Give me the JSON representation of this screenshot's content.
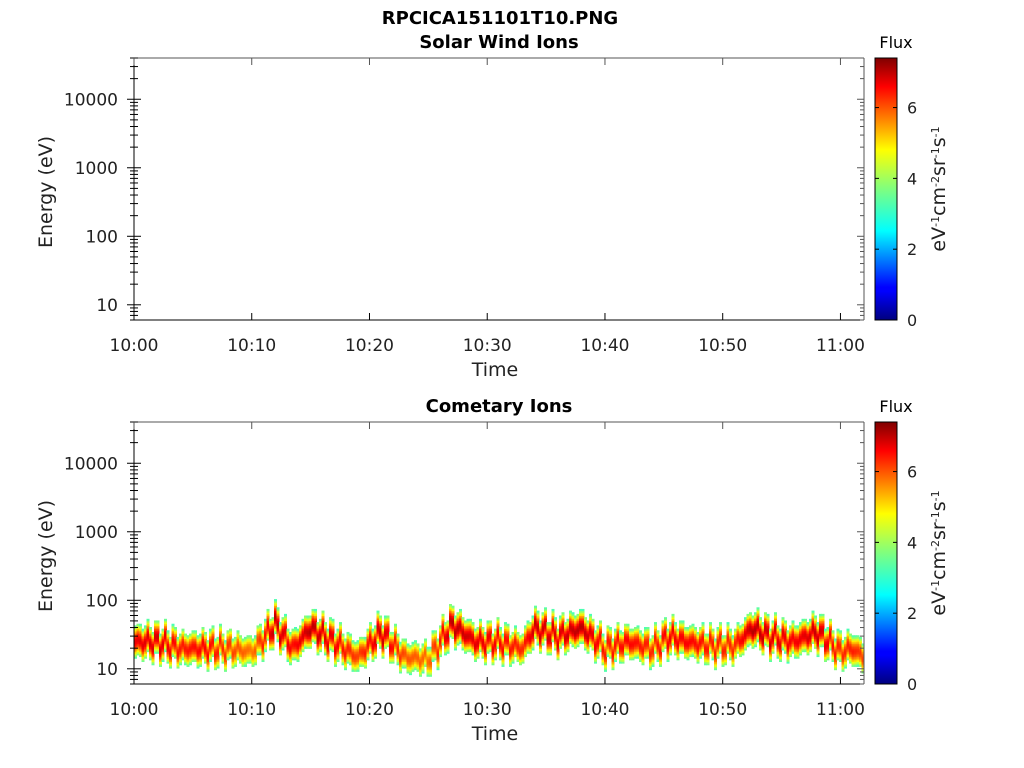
{
  "figure": {
    "title": "RPCICA151101T10.PNG"
  },
  "chart_data": [
    {
      "type": "heatmap",
      "title": "Solar Wind Ions",
      "xlabel": "Time",
      "ylabel": "Energy (eV)",
      "xticks": [
        "10:00",
        "10:10",
        "10:20",
        "10:30",
        "10:40",
        "10:50",
        "11:00"
      ],
      "xlim": [
        "10:00",
        "11:02"
      ],
      "yscale": "log",
      "ylim": [
        6,
        40000
      ],
      "yticks": [
        10,
        100,
        1000,
        10000
      ],
      "ytick_labels": [
        "10",
        "100",
        "1000",
        "10000"
      ],
      "colorbar": {
        "title": "Flux",
        "label": "eV-1cm-2sr-1s-1",
        "range": [
          0,
          7.4
        ],
        "ticks": [
          0,
          2,
          4,
          6
        ],
        "tick_labels": [
          "0",
          "2",
          "4",
          "6"
        ],
        "colormap": "jet"
      },
      "band": []
    },
    {
      "type": "heatmap",
      "title": "Cometary Ions",
      "xlabel": "Time",
      "ylabel": "Energy (eV)",
      "xticks": [
        "10:00",
        "10:10",
        "10:20",
        "10:30",
        "10:40",
        "10:50",
        "11:00"
      ],
      "xlim": [
        "10:00",
        "11:02"
      ],
      "yscale": "log",
      "ylim": [
        6,
        40000
      ],
      "yticks": [
        10,
        100,
        1000,
        10000
      ],
      "ytick_labels": [
        "10",
        "100",
        "1000",
        "10000"
      ],
      "colorbar": {
        "title": "Flux",
        "label": "eV-1cm-2sr-1s-1",
        "range": [
          0,
          7.4
        ],
        "ticks": [
          0,
          2,
          4,
          6
        ],
        "tick_labels": [
          "0",
          "2",
          "4",
          "6"
        ],
        "colormap": "jet"
      },
      "band": [
        {
          "t": 0,
          "peak_eV": 25,
          "peak_flux": 6.6
        },
        {
          "t": 2,
          "peak_eV": 25,
          "peak_flux": 6.8
        },
        {
          "t": 4,
          "peak_eV": 20,
          "peak_flux": 6.3
        },
        {
          "t": 6,
          "peak_eV": 20,
          "peak_flux": 6.5
        },
        {
          "t": 8,
          "peak_eV": 20,
          "peak_flux": 6.1
        },
        {
          "t": 10,
          "peak_eV": 18,
          "peak_flux": 5.6
        },
        {
          "t": 12,
          "peak_eV": 45,
          "peak_flux": 7.0
        },
        {
          "t": 13.5,
          "peak_eV": 20,
          "peak_flux": 6.4
        },
        {
          "t": 15,
          "peak_eV": 40,
          "peak_flux": 7.0
        },
        {
          "t": 17,
          "peak_eV": 25,
          "peak_flux": 6.6
        },
        {
          "t": 19,
          "peak_eV": 15,
          "peak_flux": 6.0
        },
        {
          "t": 21,
          "peak_eV": 35,
          "peak_flux": 6.9
        },
        {
          "t": 23,
          "peak_eV": 15,
          "peak_flux": 5.9
        },
        {
          "t": 25,
          "peak_eV": 14,
          "peak_flux": 5.7
        },
        {
          "t": 27,
          "peak_eV": 45,
          "peak_flux": 7.0
        },
        {
          "t": 29,
          "peak_eV": 25,
          "peak_flux": 6.7
        },
        {
          "t": 31,
          "peak_eV": 25,
          "peak_flux": 6.5
        },
        {
          "t": 33,
          "peak_eV": 20,
          "peak_flux": 6.2
        },
        {
          "t": 34,
          "peak_eV": 40,
          "peak_flux": 6.9
        },
        {
          "t": 36,
          "peak_eV": 30,
          "peak_flux": 6.7
        },
        {
          "t": 38,
          "peak_eV": 40,
          "peak_flux": 7.0
        },
        {
          "t": 40,
          "peak_eV": 20,
          "peak_flux": 6.3
        },
        {
          "t": 42,
          "peak_eV": 25,
          "peak_flux": 6.5
        },
        {
          "t": 44,
          "peak_eV": 20,
          "peak_flux": 6.2
        },
        {
          "t": 45.5,
          "peak_eV": 30,
          "peak_flux": 6.6
        },
        {
          "t": 47,
          "peak_eV": 25,
          "peak_flux": 6.5
        },
        {
          "t": 49,
          "peak_eV": 22,
          "peak_flux": 6.3
        },
        {
          "t": 51,
          "peak_eV": 22,
          "peak_flux": 6.2
        },
        {
          "t": 52.5,
          "peak_eV": 40,
          "peak_flux": 7.0
        },
        {
          "t": 54,
          "peak_eV": 30,
          "peak_flux": 6.8
        },
        {
          "t": 56,
          "peak_eV": 25,
          "peak_flux": 6.5
        },
        {
          "t": 58,
          "peak_eV": 35,
          "peak_flux": 6.9
        },
        {
          "t": 60,
          "peak_eV": 18,
          "peak_flux": 6.2
        },
        {
          "t": 61,
          "peak_eV": 20,
          "peak_flux": 6.3
        },
        {
          "t": 62,
          "peak_eV": 15,
          "peak_flux": 6.0
        }
      ]
    }
  ]
}
